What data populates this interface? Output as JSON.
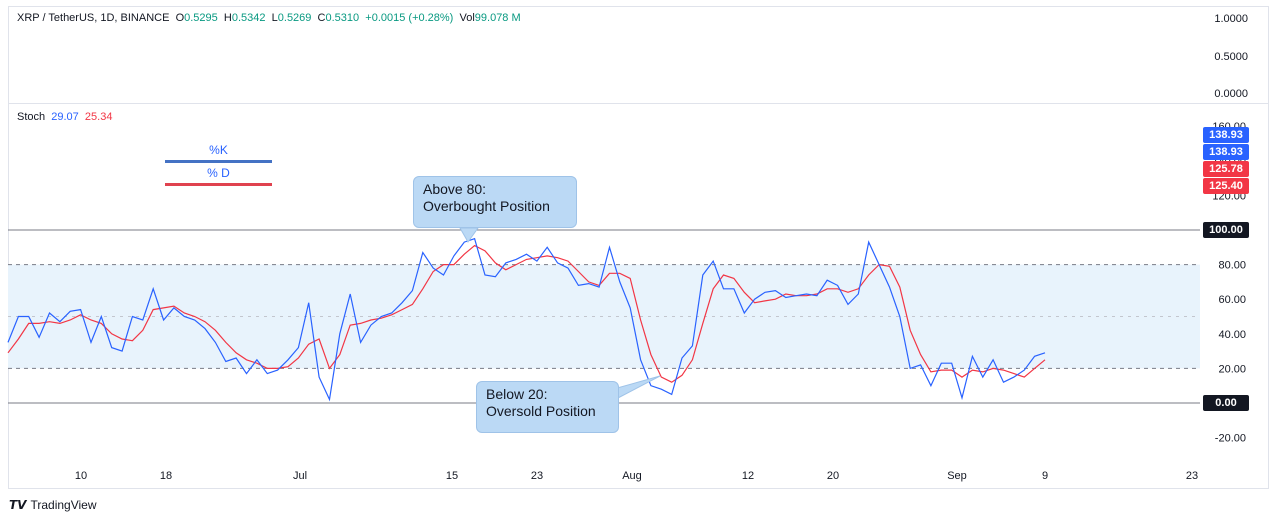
{
  "header": {
    "symbol": "XRP / TetherUS, 1D, BINANCE",
    "open_label": "O",
    "open": "0.5295",
    "high_label": "H",
    "high": "0.5342",
    "low_label": "L",
    "low": "0.5269",
    "close_label": "C",
    "close": "0.5310",
    "change": "+0.0015 (+0.28%)",
    "vol_label": "Vol",
    "vol": "99.078 M"
  },
  "price_axis": [
    "1.0000",
    "0.5000",
    "0.0000"
  ],
  "stoch_legend": {
    "name": "Stoch",
    "k": "29.07",
    "d": "25.34"
  },
  "legend_box": {
    "k_label": "%K",
    "d_label": "% D"
  },
  "callouts": {
    "overbought": [
      "Above 80:",
      "Overbought Position"
    ],
    "oversold": [
      "Below 20:",
      "Oversold Position"
    ]
  },
  "badges": [
    {
      "text": "138.93",
      "color": "#2962ff"
    },
    {
      "text": "138.93",
      "color": "#2962ff"
    },
    {
      "text": "125.78",
      "color": "#f23645"
    },
    {
      "text": "125.40",
      "color": "#f23645"
    },
    {
      "text": "100.00",
      "color": "#131722"
    },
    {
      "text": "0.00",
      "color": "#131722"
    }
  ],
  "footer": {
    "brand": "TradingView"
  },
  "chart_data": {
    "type": "line",
    "x_tick_labels": [
      "10",
      "18",
      "Jul",
      "15",
      "23",
      "Aug",
      "12",
      "20",
      "Sep",
      "9",
      "23"
    ],
    "y_tick_labels": [
      "160.00",
      "140.00",
      "120.00",
      "100.00",
      "80.00",
      "60.00",
      "40.00",
      "20.00",
      "0.00",
      "-20.00"
    ],
    "ylim": [
      -25,
      160
    ],
    "bands": {
      "upper": 80,
      "middle": 50,
      "lower": 20,
      "top_line": 100,
      "zero_line": 0
    },
    "series": [
      {
        "name": "%K",
        "color": "#2962ff",
        "values": [
          35,
          50,
          50,
          38,
          52,
          47,
          53,
          54,
          35,
          50,
          32,
          30,
          50,
          48,
          66,
          48,
          55,
          50,
          48,
          43,
          35,
          24,
          26,
          17,
          25,
          17,
          19,
          25,
          32,
          58,
          15,
          2,
          40,
          63,
          35,
          45,
          50,
          52,
          58,
          65,
          87,
          78,
          74,
          85,
          93,
          95,
          74,
          73,
          81,
          83,
          86,
          82,
          90,
          81,
          78,
          68,
          69,
          67,
          90,
          70,
          55,
          25,
          10,
          8,
          5,
          26,
          33,
          74,
          82,
          66,
          66,
          52,
          60,
          64,
          65,
          61,
          62,
          63,
          62,
          71,
          68,
          57,
          63,
          93,
          80,
          67,
          50,
          20,
          22,
          10,
          23,
          23,
          3,
          27,
          15,
          25,
          12,
          15,
          19,
          27,
          29
        ]
      },
      {
        "name": "% D",
        "color": "#f23645",
        "values": [
          29,
          37,
          46,
          46,
          47,
          46,
          48,
          51,
          48,
          46,
          40,
          37,
          36,
          42,
          54,
          55,
          56,
          52,
          50,
          47,
          42,
          35,
          29,
          25,
          23,
          20,
          20,
          21,
          26,
          34,
          37,
          20,
          28,
          45,
          46,
          48,
          49,
          51,
          54,
          57,
          66,
          76,
          80,
          80,
          86,
          91,
          88,
          81,
          77,
          80,
          83,
          84,
          85,
          84,
          82,
          76,
          70,
          68,
          75,
          75,
          72,
          48,
          28,
          15,
          12,
          16,
          25,
          46,
          66,
          74,
          72,
          64,
          58,
          59,
          60,
          63,
          62,
          62,
          63,
          66,
          66,
          64,
          66,
          74,
          80,
          79,
          67,
          42,
          28,
          18,
          19,
          19,
          15,
          19,
          18,
          20,
          19,
          17,
          15,
          20,
          25
        ]
      }
    ]
  }
}
